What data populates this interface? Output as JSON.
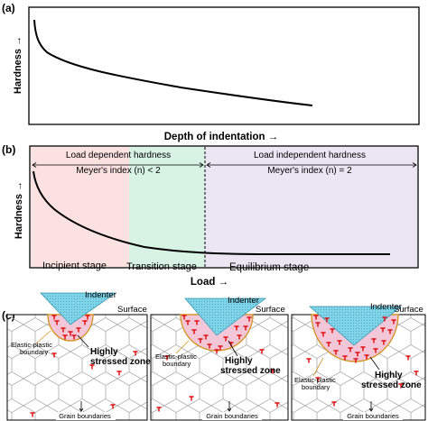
{
  "panel_a": {
    "label": "(a)",
    "ylabel": "Hardness →",
    "xlabel": "Depth of indentation →"
  },
  "panel_b": {
    "label": "(b)",
    "ylabel": "Hardness →",
    "xlabel": "Load →",
    "region_left_title": "Load dependent hardness",
    "region_left_sub": "Meyer's index (n) < 2",
    "region_right_title": "Load independent hardness",
    "region_right_sub": "Meyer's index (n) = 2",
    "stage_incipient": "Incipient stage",
    "stage_transition": "Transition stage",
    "stage_equilibrium": "Equilibrium stage",
    "colors": {
      "incipient": "#fbe1e0",
      "transition": "#d8f3e4",
      "equilibrium": "#ece6f4"
    }
  },
  "panel_c": {
    "label": "(c)",
    "indenter": "Indenter",
    "surface": "Surface",
    "boundary": "Elastic-plastic boundary",
    "zone_line1": "Highly",
    "zone_line2": "stressed zone",
    "grain": "Grain boundaries",
    "colors": {
      "indenter": "#7fd4e8",
      "zone": "#f4c7d8",
      "boundary": "#d4962a",
      "dislocation": "#e01010"
    }
  }
}
